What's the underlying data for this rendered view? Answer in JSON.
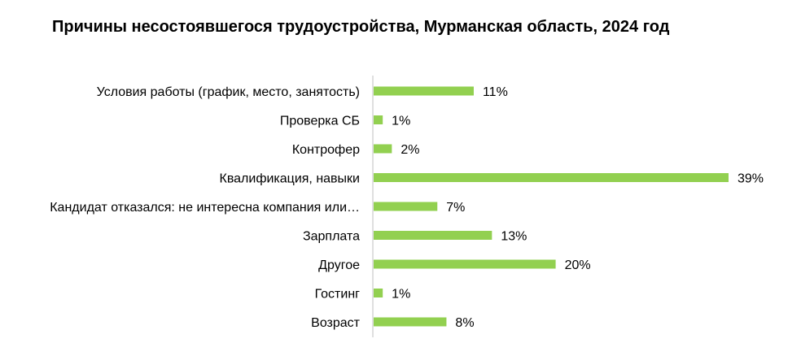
{
  "chart_data": {
    "type": "bar",
    "orientation": "horizontal",
    "title": "Причины несостоявшегося трудоустройства,  Мурманская область, 2024 год",
    "xlabel": "",
    "ylabel": "",
    "categories": [
      "Условия работы (график, место, занятость)",
      "Проверка СБ",
      "Контрофер",
      "Квалификация,  навыки",
      "Кандидат отказался: не интересна компания или…",
      "Зарплата",
      "Другое",
      "Гостинг",
      "Возраст"
    ],
    "values": [
      11,
      1,
      2,
      39,
      7,
      13,
      20,
      1,
      8
    ],
    "value_labels": [
      "11%",
      "1%",
      "2%",
      "39%",
      "7%",
      "13%",
      "20%",
      "1%",
      "8%"
    ],
    "unit": "%",
    "xlim": [
      0,
      39
    ],
    "grid": false,
    "legend": "none",
    "bar_color": "#92D050",
    "axis_color": "#BFBFBF"
  }
}
